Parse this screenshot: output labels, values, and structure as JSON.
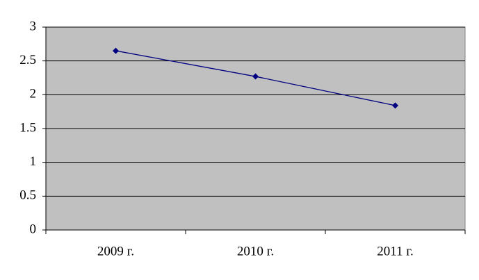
{
  "chart_data": {
    "type": "line",
    "categories": [
      "2009 г.",
      "2010 г.",
      "2011 г."
    ],
    "values": [
      2.65,
      2.27,
      1.84
    ],
    "color": "#000080",
    "plot_background": "#c0c0c0",
    "ylim": [
      0,
      3
    ],
    "yticks": [
      0,
      0.5,
      1,
      1.5,
      2,
      2.5,
      3
    ],
    "grid": true
  }
}
